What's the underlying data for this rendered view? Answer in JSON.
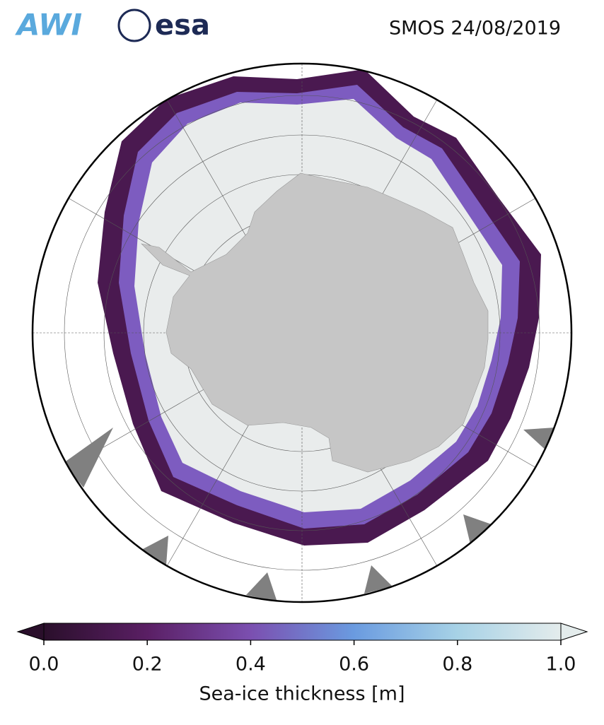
{
  "header": {
    "logo_left": "AWI",
    "logo_right": "esa",
    "title": "SMOS 24/08/2019"
  },
  "chart_data": {
    "type": "colorbar",
    "label": "Sea-ice thickness [m]",
    "xlim": [
      0,
      1
    ],
    "xticks": [
      {
        "value": 0,
        "label": "0.0"
      },
      {
        "value": 0.2,
        "label": "0.2"
      },
      {
        "value": 0.4,
        "label": "0.4"
      },
      {
        "value": 0.6,
        "label": "0.6"
      },
      {
        "value": 0.8,
        "label": "0.8"
      },
      {
        "value": 1,
        "label": "1.0"
      }
    ],
    "colors": [
      "#2a0f2b",
      "#5a1f64",
      "#7b4fb0",
      "#6a9be0",
      "#a7d2e6",
      "#e4ecec"
    ]
  }
}
